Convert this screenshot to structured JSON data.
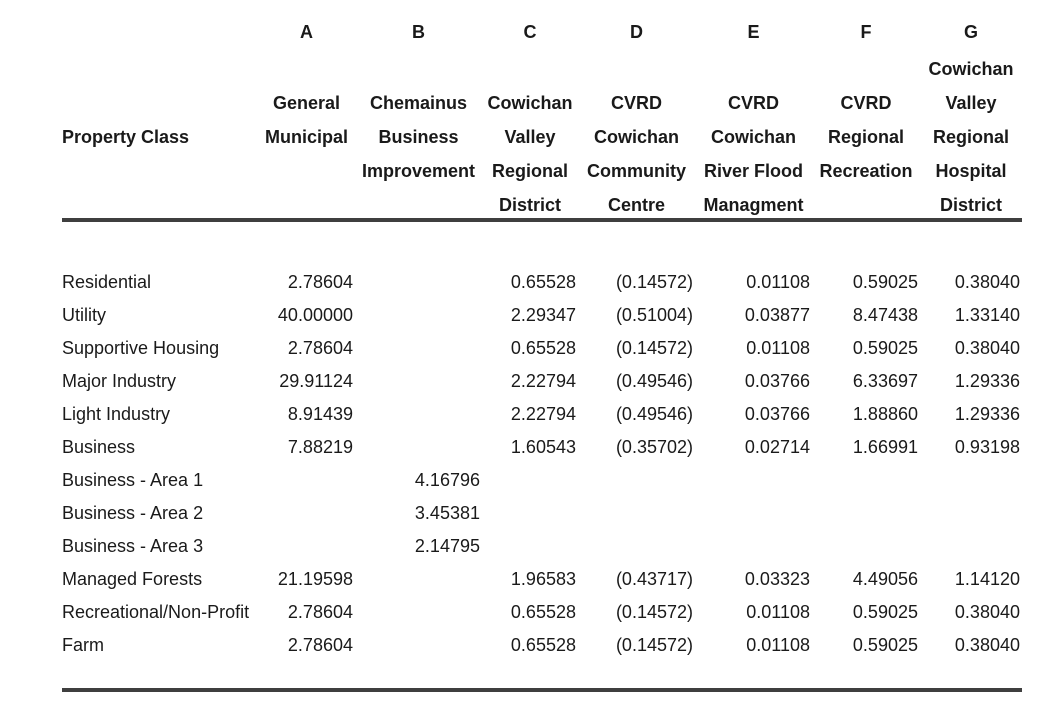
{
  "page": {
    "background": "#ffffff",
    "text_color": "#1a1a1a",
    "rule_color": "#3f3f3f"
  },
  "table": {
    "corner_label": "Property Class",
    "columns": [
      {
        "letter": "A",
        "header_lines": [
          "General",
          "Municipal"
        ]
      },
      {
        "letter": "B",
        "header_lines": [
          "Chemainus",
          "Business",
          "Improvement"
        ]
      },
      {
        "letter": "C",
        "header_lines": [
          "Cowichan",
          "Valley",
          "Regional",
          "District"
        ]
      },
      {
        "letter": "D",
        "header_lines": [
          "CVRD",
          "Cowichan",
          "Community",
          "Centre"
        ]
      },
      {
        "letter": "E",
        "header_lines": [
          "CVRD",
          "Cowichan",
          "River Flood",
          "Managment"
        ]
      },
      {
        "letter": "F",
        "header_lines": [
          "CVRD",
          "Regional",
          "Recreation"
        ]
      },
      {
        "letter": "G",
        "header_lines": [
          "Cowichan",
          "Valley",
          "Regional",
          "Hospital",
          "District"
        ]
      }
    ],
    "rows": [
      {
        "label": "Residential",
        "values": [
          "2.78604",
          "",
          "0.65528",
          "(0.14572)",
          "0.01108",
          "0.59025",
          "0.38040"
        ]
      },
      {
        "label": "Utility",
        "values": [
          "40.00000",
          "",
          "2.29347",
          "(0.51004)",
          "0.03877",
          "8.47438",
          "1.33140"
        ]
      },
      {
        "label": "Supportive Housing",
        "values": [
          "2.78604",
          "",
          "0.65528",
          "(0.14572)",
          "0.01108",
          "0.59025",
          "0.38040"
        ]
      },
      {
        "label": "Major Industry",
        "values": [
          "29.91124",
          "",
          "2.22794",
          "(0.49546)",
          "0.03766",
          "6.33697",
          "1.29336"
        ]
      },
      {
        "label": "Light Industry",
        "values": [
          "8.91439",
          "",
          "2.22794",
          "(0.49546)",
          "0.03766",
          "1.88860",
          "1.29336"
        ]
      },
      {
        "label": "Business",
        "values": [
          "7.88219",
          "",
          "1.60543",
          "(0.35702)",
          "0.02714",
          "1.66991",
          "0.93198"
        ]
      },
      {
        "label": "Business - Area 1",
        "values": [
          "",
          "4.16796",
          "",
          "",
          "",
          "",
          ""
        ]
      },
      {
        "label": "Business - Area 2",
        "values": [
          "",
          "3.45381",
          "",
          "",
          "",
          "",
          ""
        ]
      },
      {
        "label": "Business - Area 3",
        "values": [
          "",
          "2.14795",
          "",
          "",
          "",
          "",
          ""
        ]
      },
      {
        "label": "Managed Forests",
        "values": [
          "21.19598",
          "",
          "1.96583",
          "(0.43717)",
          "0.03323",
          "4.49056",
          "1.14120"
        ]
      },
      {
        "label": "Recreational/Non-Profit",
        "values": [
          "2.78604",
          "",
          "0.65528",
          "(0.14572)",
          "0.01108",
          "0.59025",
          "0.38040"
        ]
      },
      {
        "label": "Farm",
        "values": [
          "2.78604",
          "",
          "0.65528",
          "(0.14572)",
          "0.01108",
          "0.59025",
          "0.38040"
        ]
      }
    ]
  }
}
